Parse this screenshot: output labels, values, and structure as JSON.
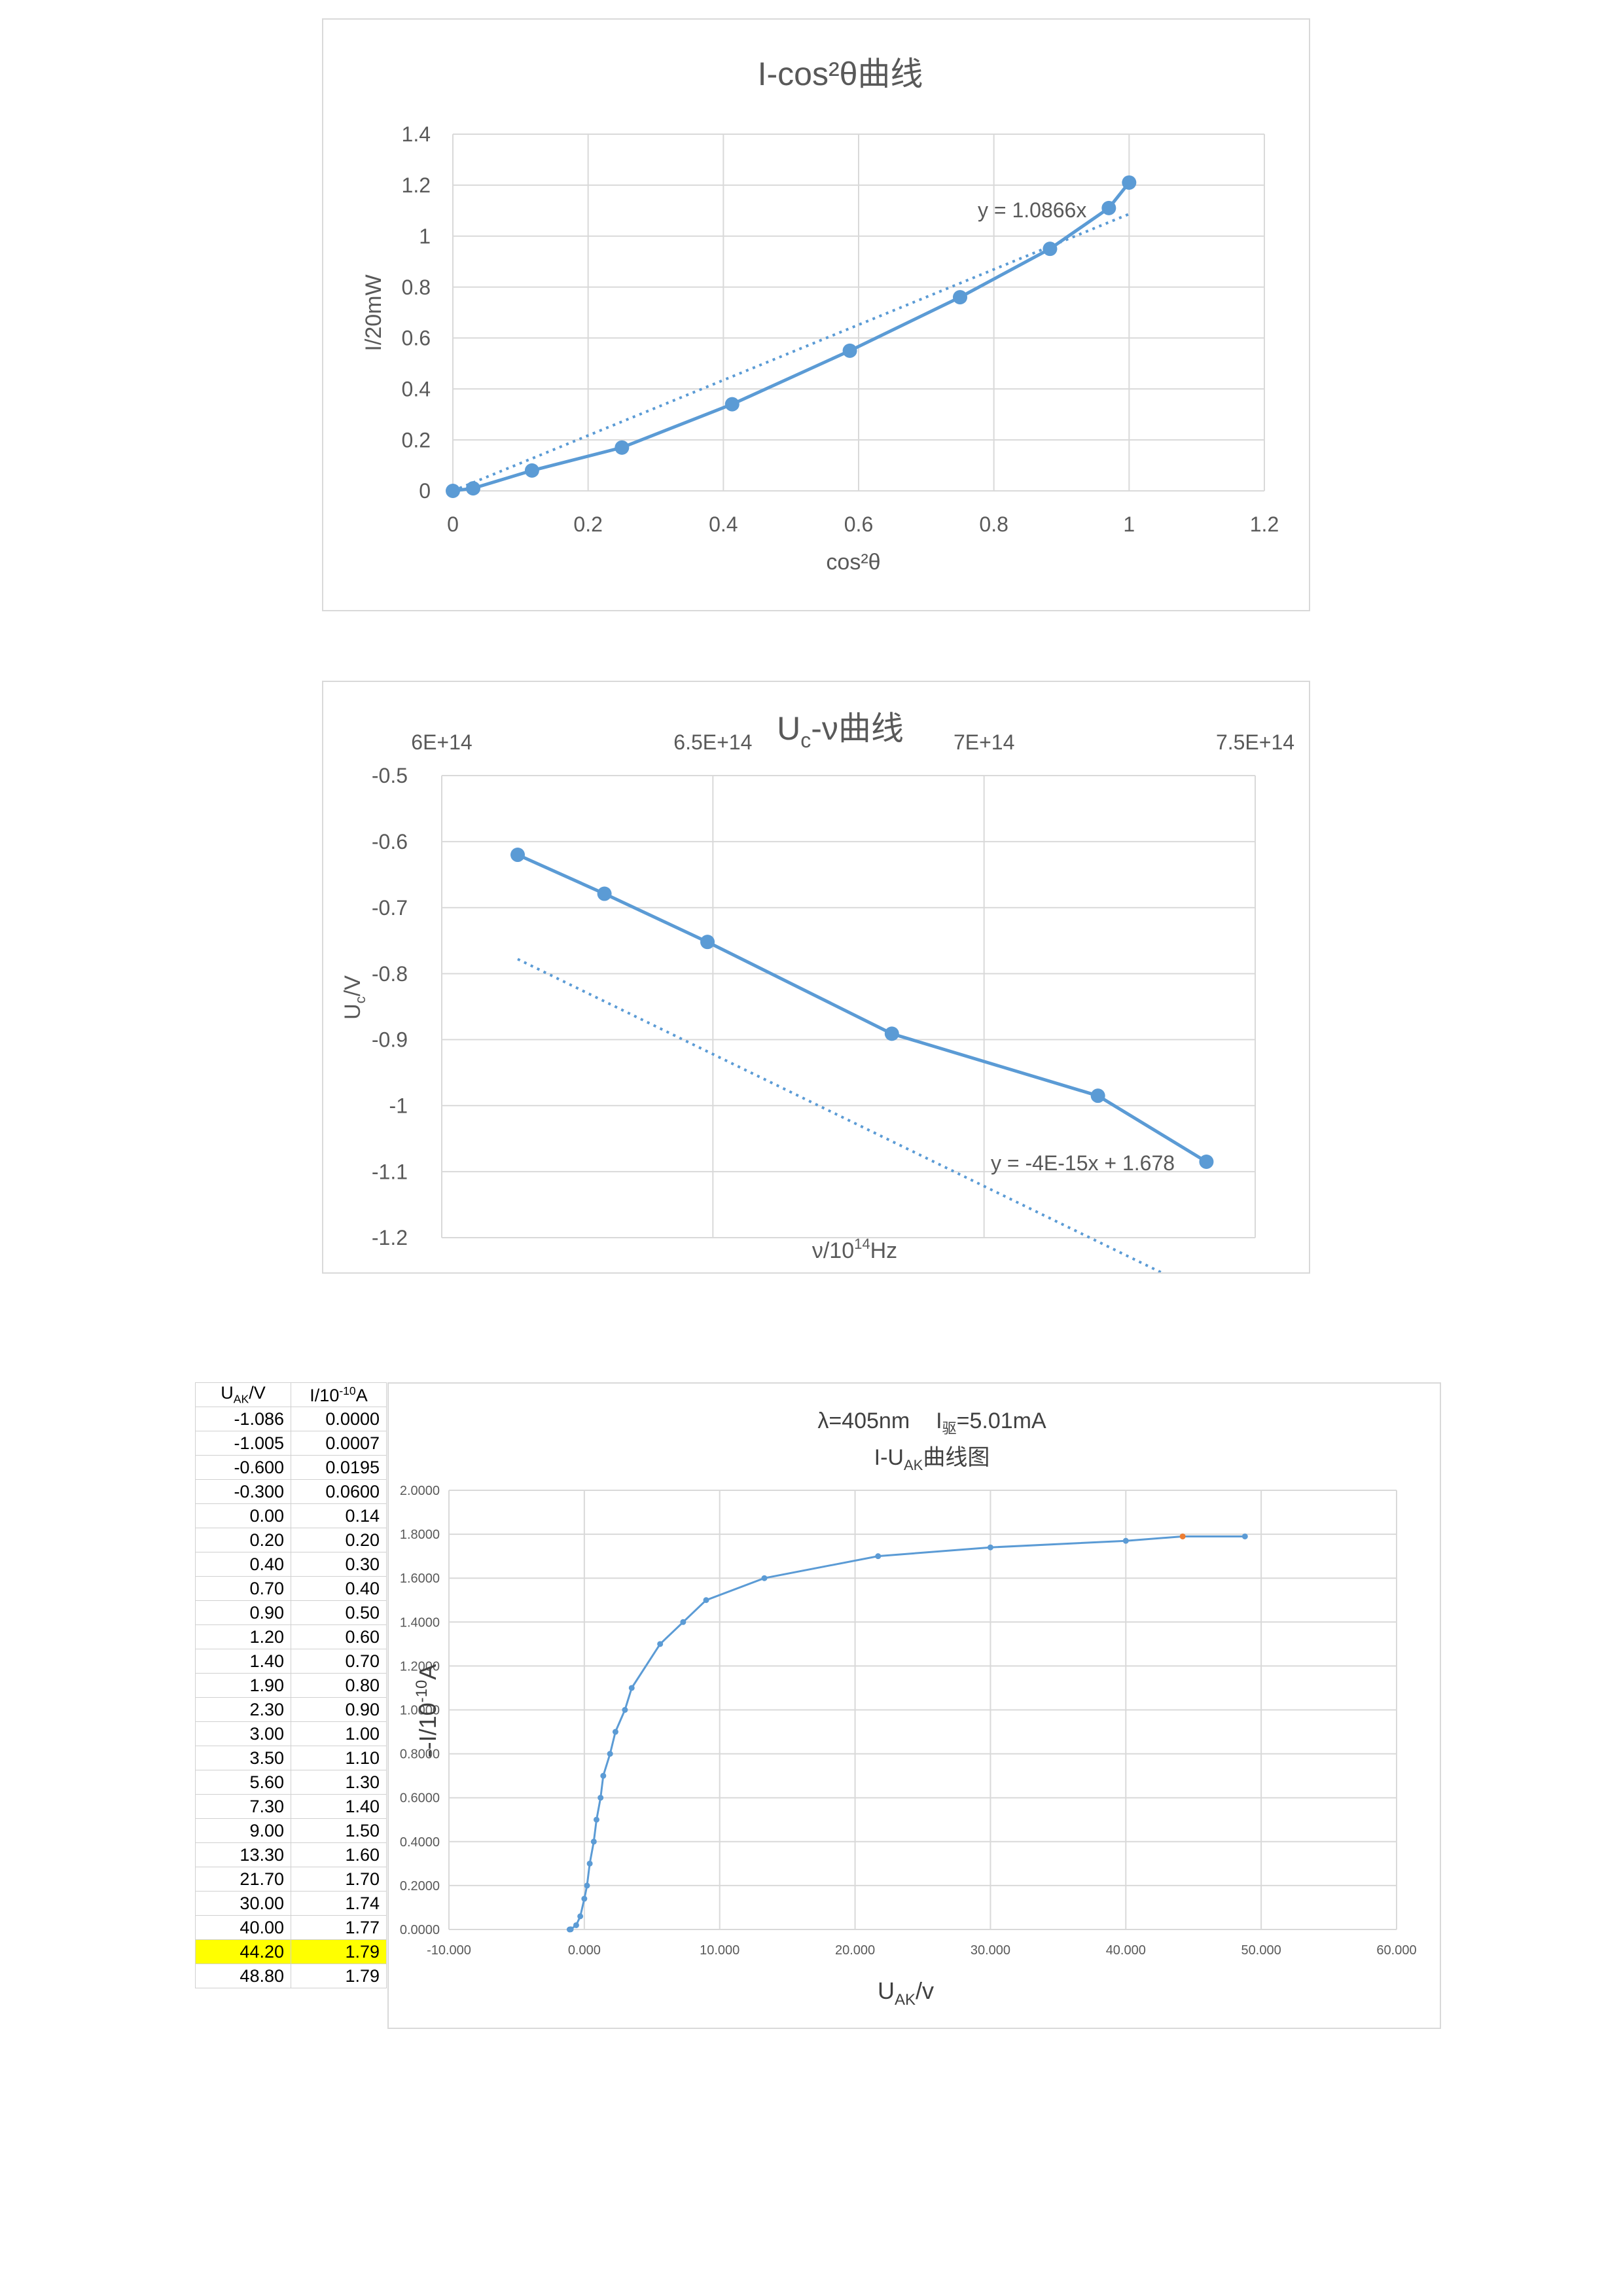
{
  "chart_data": [
    {
      "type": "scatter",
      "title": "I-cos²θ曲线",
      "xlabel": "cos²θ",
      "ylabel": "I/20mW",
      "xlim": [
        0,
        1.2
      ],
      "ylim": [
        0,
        1.4
      ],
      "x_ticks": [
        "0",
        "0.2",
        "0.4",
        "0.6",
        "0.8",
        "1",
        "1.2"
      ],
      "y_ticks": [
        "0",
        "0.2",
        "0.4",
        "0.6",
        "0.8",
        "1",
        "1.2",
        "1.4"
      ],
      "grid": true,
      "series": [
        {
          "x": [
            0,
            0.03,
            0.117,
            0.25,
            0.413,
            0.587,
            0.75,
            0.883,
            0.97,
            1.0
          ],
          "y": [
            0,
            0.01,
            0.08,
            0.17,
            0.34,
            0.55,
            0.76,
            0.95,
            1.11,
            1.21
          ],
          "color": "#5b9bd5"
        }
      ],
      "trendline": {
        "slope": 1.0866,
        "intercept": 0,
        "x_range": [
          0,
          1
        ],
        "label": "y = 1.0866x",
        "style": "dotted"
      }
    },
    {
      "type": "scatter",
      "title": "Uc-ν曲线",
      "title_main": "U",
      "title_sub": "c",
      "title_rest": "-ν曲线",
      "xlabel": "ν/10¹⁴Hz",
      "xlabel_main": "ν/10",
      "xlabel_sup": "14",
      "xlabel_unit": "Hz",
      "ylabel": "Uc/V",
      "ylabel_main": "U",
      "ylabel_sub": "c",
      "ylabel_unit": "/V",
      "xlim": [
        600000000000000.0,
        750000000000000.0
      ],
      "ylim": [
        -1.2,
        -0.5
      ],
      "x_ticks": [
        "6E+14",
        "6.5E+14",
        "7E+14",
        "7.5E+14"
      ],
      "y_ticks": [
        "-0.5",
        "-0.6",
        "-0.7",
        "-0.8",
        "-0.9",
        "-1",
        "-1.1",
        "-1.2"
      ],
      "x_axis_position": "top",
      "grid": true,
      "series": [
        {
          "x": [
            614000000000000.0,
            630000000000000.0,
            649000000000000.0,
            683000000000000.0,
            721000000000000.0,
            741000000000000.0
          ],
          "y": [
            -0.62,
            -0.679,
            -0.752,
            -0.891,
            -0.985,
            -1.085
          ],
          "color": "#5b9bd5"
        }
      ],
      "trendline": {
        "slope": -4e-15,
        "intercept": 1.678,
        "x_range": [
          614000000000000.0,
          741000000000000.0
        ],
        "label": "y = -4E-15x + 1.678",
        "style": "dotted"
      }
    },
    {
      "type": "line",
      "title_line1": "λ=405nm     I驱=5.01mA",
      "title_line1_a": "λ=405nm",
      "title_line1_b": "I",
      "title_line1_sub": "驱",
      "title_line1_c": "=5.01mA",
      "title_line2": "I-UAK曲线图",
      "title_line2_a": "I-U",
      "title_line2_sub": "AK",
      "title_line2_b": "曲线图",
      "xlabel": "UAK/v",
      "xlabel_main": "U",
      "xlabel_sub": "AK",
      "xlabel_unit": "/v",
      "ylabel": "--I/10-10A",
      "ylabel_main": "--I/10",
      "ylabel_sup": "-10",
      "ylabel_unit": "A",
      "xlim": [
        -10,
        60
      ],
      "ylim": [
        0,
        2
      ],
      "x_ticks": [
        "-10.000",
        "0.000",
        "10.000",
        "20.000",
        "30.000",
        "40.000",
        "50.000",
        "60.000"
      ],
      "y_ticks": [
        "0.0000",
        "0.2000",
        "0.4000",
        "0.6000",
        "0.8000",
        "1.0000",
        "1.2000",
        "1.4000",
        "1.6000",
        "1.8000",
        "2.0000"
      ],
      "grid": true,
      "series": [
        {
          "x": [
            -1.086,
            -1.005,
            -0.6,
            -0.3,
            0.0,
            0.2,
            0.4,
            0.7,
            0.9,
            1.2,
            1.4,
            1.9,
            2.3,
            3.0,
            3.5,
            5.6,
            7.3,
            9.0,
            13.3,
            21.7,
            30.0,
            40.0,
            44.2,
            48.8
          ],
          "y": [
            0.0,
            0.0007,
            0.0195,
            0.06,
            0.14,
            0.2,
            0.3,
            0.4,
            0.5,
            0.6,
            0.7,
            0.8,
            0.9,
            1.0,
            1.1,
            1.3,
            1.4,
            1.5,
            1.6,
            1.7,
            1.74,
            1.77,
            1.79,
            1.79
          ],
          "color": "#5b9bd5",
          "highlight_index": 22,
          "highlight_color": "#ed7d31"
        }
      ]
    }
  ],
  "table": {
    "header_u_main": "U",
    "header_u_sub": "AK",
    "header_u_unit": "/V",
    "header_i_main": "I/10",
    "header_i_sup": "-10",
    "header_i_unit": "A",
    "highlight_color": "#ffff00",
    "rows": [
      [
        "-1.086",
        "0.0000"
      ],
      [
        "-1.005",
        "0.0007"
      ],
      [
        "-0.600",
        "0.0195"
      ],
      [
        "-0.300",
        "0.0600"
      ],
      [
        "0.00",
        "0.14"
      ],
      [
        "0.20",
        "0.20"
      ],
      [
        "0.40",
        "0.30"
      ],
      [
        "0.70",
        "0.40"
      ],
      [
        "0.90",
        "0.50"
      ],
      [
        "1.20",
        "0.60"
      ],
      [
        "1.40",
        "0.70"
      ],
      [
        "1.90",
        "0.80"
      ],
      [
        "2.30",
        "0.90"
      ],
      [
        "3.00",
        "1.00"
      ],
      [
        "3.50",
        "1.10"
      ],
      [
        "5.60",
        "1.30"
      ],
      [
        "7.30",
        "1.40"
      ],
      [
        "9.00",
        "1.50"
      ],
      [
        "13.30",
        "1.60"
      ],
      [
        "21.70",
        "1.70"
      ],
      [
        "30.00",
        "1.74"
      ],
      [
        "40.00",
        "1.77"
      ],
      [
        "44.20",
        "1.79"
      ],
      [
        "48.80",
        "1.79"
      ]
    ],
    "highlight_row": 22
  }
}
